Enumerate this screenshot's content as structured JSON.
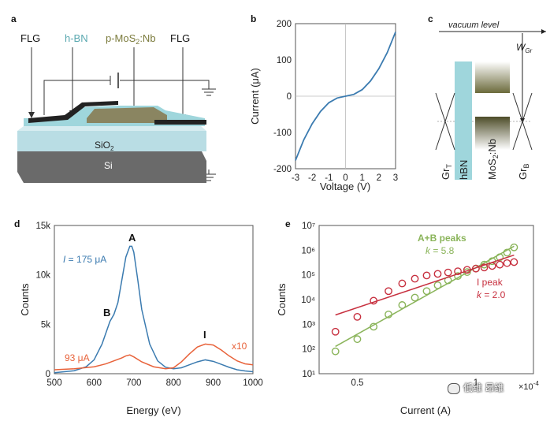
{
  "panels": {
    "a": {
      "label": "a",
      "fig_labels": {
        "flg_left": "FLG",
        "hbn": "h-BN",
        "mos2": "p-MoS",
        "mos2_sub": "2",
        "mos2_suffix": ":Nb",
        "flg_right": "FLG",
        "sio2": "SiO",
        "sio2_sub": "2",
        "si": "Si"
      },
      "colors": {
        "hbn": "#9fd6dc",
        "mos2": "#8a8561",
        "graphene": "#222222",
        "sio2": "#b9dde4",
        "si": "#6a6a6a",
        "mos2_label": "#7b7b3c",
        "hbn_label": "#5aa8b0"
      }
    },
    "b": {
      "label": "b",
      "chart_data": {
        "type": "line",
        "xlabel": "Voltage (V)",
        "ylabel": "Current (μA)",
        "xlim": [
          -3,
          3
        ],
        "ylim": [
          -200,
          200
        ],
        "xticks": [
          -3,
          -2,
          -1,
          0,
          1,
          2,
          3
        ],
        "yticks": [
          -200,
          -100,
          0,
          100,
          200
        ],
        "series": [
          {
            "x": [
              -3,
              -2.5,
              -2,
              -1.5,
              -1,
              -0.5,
              0,
              0.5,
              1,
              1.5,
              2,
              2.5,
              3
            ],
            "values": [
              -177,
              -120,
              -76,
              -42,
              -18,
              -5,
              0,
              5,
              18,
              42,
              76,
              120,
              177
            ],
            "color": "#3b7bb0"
          }
        ]
      }
    },
    "c": {
      "label": "c",
      "fig_labels": {
        "vacuum": "vacuum level",
        "wgr": "W",
        "wgr_sub": "Gr",
        "grt": "Gr",
        "grt_sub": "T",
        "hbn": "hBN",
        "mos2": "MoS",
        "mos2_sub": "2",
        "mos2_suffix": ":Nb",
        "grb": "Gr",
        "grb_sub": "B"
      }
    },
    "d": {
      "label": "d",
      "annotations": {
        "peak_a": "A",
        "peak_b": "B",
        "peak_i": "I",
        "current_i": "I",
        "current_rest": " = 175 μA",
        "current_93": "93 μA",
        "scale": "x10"
      },
      "chart_data": {
        "type": "line",
        "xlabel": "Energy (eV)",
        "ylabel": "Counts",
        "xlim": [
          500,
          1000
        ],
        "ylim": [
          0,
          15000
        ],
        "xticks": [
          500,
          600,
          700,
          800,
          900,
          1000
        ],
        "yticks": [
          0,
          5000,
          10000,
          15000
        ],
        "ytick_labels": [
          "0",
          "5k",
          "10k",
          "15k"
        ],
        "series": [
          {
            "name": "175 μA",
            "color": "#3b7bb0",
            "x": [
              500,
              550,
              580,
              600,
              620,
              640,
              650,
              660,
              670,
              680,
              690,
              695,
              700,
              710,
              720,
              740,
              760,
              780,
              800,
              820,
              840,
              860,
              880,
              900,
              920,
              940,
              960,
              980,
              1000
            ],
            "values": [
              100,
              300,
              700,
              1400,
              3000,
              5300,
              6000,
              7200,
              9500,
              11800,
              12900,
              12900,
              12300,
              9500,
              6500,
              3000,
              1300,
              650,
              500,
              600,
              900,
              1200,
              1400,
              1250,
              950,
              650,
              400,
              280,
              200
            ]
          },
          {
            "name": "93 μA",
            "color": "#e8623a",
            "x": [
              500,
              550,
              600,
              630,
              650,
              670,
              680,
              690,
              700,
              720,
              750,
              780,
              800,
              820,
              840,
              860,
              880,
              900,
              920,
              940,
              960,
              980,
              1000
            ],
            "values": [
              400,
              500,
              700,
              1000,
              1300,
              1600,
              1800,
              1900,
              1700,
              1200,
              700,
              500,
              600,
              1200,
              2000,
              2700,
              3000,
              2900,
              2400,
              1800,
              1300,
              1000,
              900
            ]
          }
        ]
      }
    },
    "e": {
      "label": "e",
      "annotations": {
        "ab_peaks": "A+B peaks",
        "ab_k": "k",
        "ab_k_val": " = 5.8",
        "i_peak": "I peak",
        "i_k": "k",
        "i_k_val": " = 2.0",
        "exp_mult": "×10",
        "exp_pow": "-4"
      },
      "chart_data": {
        "type": "scatter",
        "xlabel": "Current (A)",
        "ylabel": "Counts",
        "xscale": "log",
        "yscale": "log",
        "xlim": [
          0.4,
          1.4
        ],
        "ylim": [
          10,
          10000000
        ],
        "xticks": [
          0.5,
          1
        ],
        "xtick_labels": [
          "0.5",
          "1"
        ],
        "yticks": [
          10,
          100,
          1000,
          10000,
          100000,
          1000000,
          10000000
        ],
        "ytick_labels": [
          "10¹",
          "10²",
          "10³",
          "10⁴",
          "10⁵",
          "10⁶",
          "10⁷"
        ],
        "series": [
          {
            "name": "A+B peaks",
            "color": "#8ab45a",
            "x": [
              0.44,
              0.5,
              0.55,
              0.6,
              0.65,
              0.7,
              0.75,
              0.8,
              0.85,
              0.9,
              0.95,
              1.0,
              1.05,
              1.1,
              1.15,
              1.2,
              1.25
            ],
            "values": [
              80,
              250,
              800,
              2500,
              6000,
              12000,
              22000,
              38000,
              60000,
              90000,
              130000,
              180000,
              260000,
              360000,
              520000,
              800000,
              1300000
            ]
          },
          {
            "name": "I peak",
            "color": "#c7303f",
            "x": [
              0.44,
              0.5,
              0.55,
              0.6,
              0.65,
              0.7,
              0.75,
              0.8,
              0.85,
              0.9,
              0.95,
              1.0,
              1.05,
              1.1,
              1.15,
              1.2,
              1.25
            ],
            "values": [
              500,
              2000,
              9000,
              22000,
              45000,
              70000,
              95000,
              110000,
              125000,
              140000,
              160000,
              180000,
              200000,
              230000,
              260000,
              300000,
              330000
            ]
          }
        ]
      }
    }
  },
  "watermark": "低维 昂维"
}
